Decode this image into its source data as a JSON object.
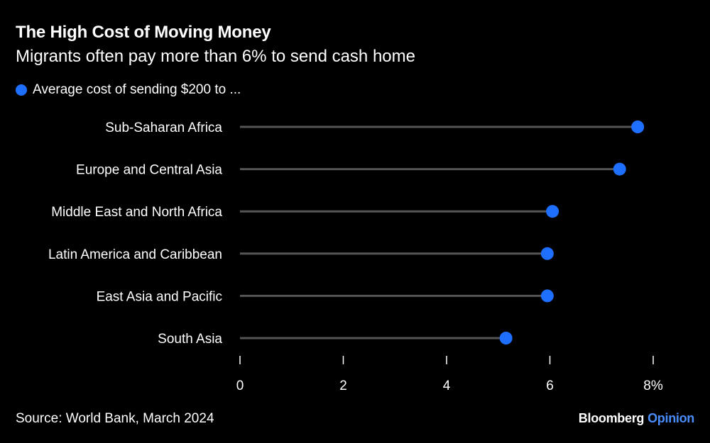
{
  "header": {
    "title": "The High Cost of Moving Money",
    "subtitle": "Migrants often pay more than 6% to send cash home"
  },
  "legend": {
    "label": "Average cost of sending $200 to ..."
  },
  "footer": {
    "source": "Source: World Bank, March 2024",
    "brand_main": "Bloomberg",
    "brand_secondary": "Opinion"
  },
  "colors": {
    "background": "#000000",
    "dot": "#1f6fff",
    "stem": "#555555",
    "text": "#ffffff",
    "brand_secondary": "#4a8dff"
  },
  "chart_data": {
    "type": "lollipop",
    "categories": [
      "Sub-Saharan Africa",
      "Europe and Central Asia",
      "Middle East and North Africa",
      "Latin America and Caribbean",
      "East Asia and Pacific",
      "South Asia"
    ],
    "series": [
      {
        "name": "Average cost of sending $200 to ...",
        "values": [
          7.7,
          7.35,
          6.05,
          5.95,
          5.95,
          5.15
        ]
      }
    ],
    "xlim": [
      0,
      8
    ],
    "xticks": [
      0,
      2,
      4,
      6,
      8
    ],
    "xtick_labels": [
      "0",
      "2",
      "4",
      "6",
      "8%"
    ],
    "grid": false,
    "legend_position": "top-left"
  }
}
